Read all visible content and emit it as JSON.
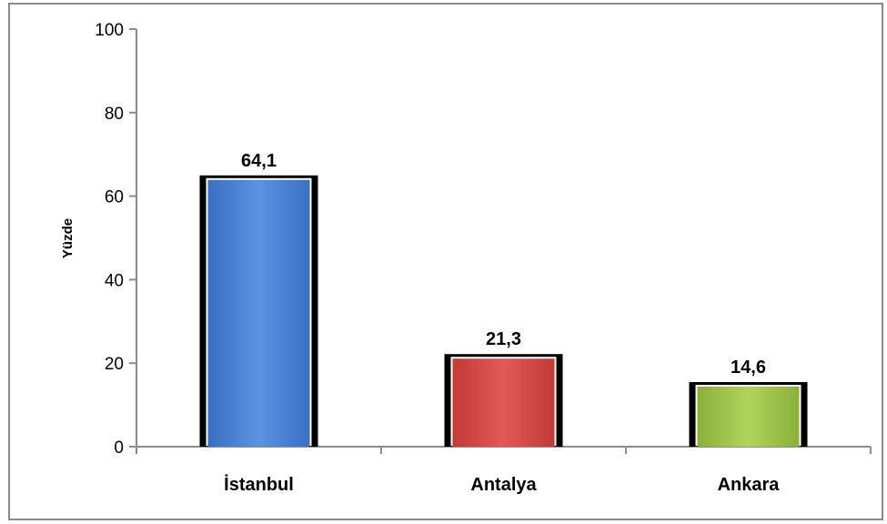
{
  "chart_data": {
    "type": "bar",
    "categories": [
      "İstanbul",
      "Antalya",
      "Ankara"
    ],
    "values": [
      64.1,
      21.3,
      14.6
    ],
    "value_labels": [
      "64,1",
      "21,3",
      "14,6"
    ],
    "title": "",
    "xlabel": "",
    "ylabel": "Yüzde",
    "ylim": [
      0,
      100
    ],
    "yticks": [
      0,
      20,
      40,
      60,
      80,
      100
    ],
    "grid": false,
    "colors": [
      "#4a7fd0",
      "#d24a48",
      "#9bc04a"
    ]
  }
}
